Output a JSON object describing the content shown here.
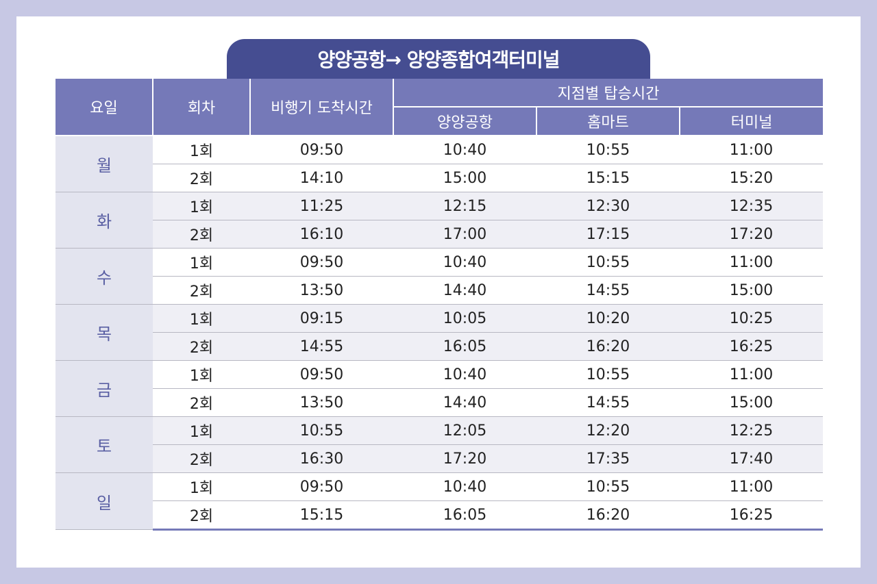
{
  "title": "양양공항→ 양양종합여객터미널",
  "headers": {
    "day": "요일",
    "round": "회차",
    "arrival": "비행기 도착시간",
    "boarding_group": "지점별 탑승시간",
    "stops": [
      "양양공항",
      "홈마트",
      "터미널"
    ]
  },
  "schedule": [
    {
      "day": "월",
      "rows": [
        {
          "round": "1회",
          "arrival": "09:50",
          "airport": "10:40",
          "mart": "10:55",
          "terminal": "11:00"
        },
        {
          "round": "2회",
          "arrival": "14:10",
          "airport": "15:00",
          "mart": "15:15",
          "terminal": "15:20"
        }
      ]
    },
    {
      "day": "화",
      "rows": [
        {
          "round": "1회",
          "arrival": "11:25",
          "airport": "12:15",
          "mart": "12:30",
          "terminal": "12:35"
        },
        {
          "round": "2회",
          "arrival": "16:10",
          "airport": "17:00",
          "mart": "17:15",
          "terminal": "17:20"
        }
      ]
    },
    {
      "day": "수",
      "rows": [
        {
          "round": "1회",
          "arrival": "09:50",
          "airport": "10:40",
          "mart": "10:55",
          "terminal": "11:00"
        },
        {
          "round": "2회",
          "arrival": "13:50",
          "airport": "14:40",
          "mart": "14:55",
          "terminal": "15:00"
        }
      ]
    },
    {
      "day": "목",
      "rows": [
        {
          "round": "1회",
          "arrival": "09:15",
          "airport": "10:05",
          "mart": "10:20",
          "terminal": "10:25"
        },
        {
          "round": "2회",
          "arrival": "14:55",
          "airport": "16:05",
          "mart": "16:20",
          "terminal": "16:25"
        }
      ]
    },
    {
      "day": "금",
      "rows": [
        {
          "round": "1회",
          "arrival": "09:50",
          "airport": "10:40",
          "mart": "10:55",
          "terminal": "11:00"
        },
        {
          "round": "2회",
          "arrival": "13:50",
          "airport": "14:40",
          "mart": "14:55",
          "terminal": "15:00"
        }
      ]
    },
    {
      "day": "토",
      "rows": [
        {
          "round": "1회",
          "arrival": "10:55",
          "airport": "12:05",
          "mart": "12:20",
          "terminal": "12:25"
        },
        {
          "round": "2회",
          "arrival": "16:30",
          "airport": "17:20",
          "mart": "17:35",
          "terminal": "17:40"
        }
      ]
    },
    {
      "day": "일",
      "rows": [
        {
          "round": "1회",
          "arrival": "09:50",
          "airport": "10:40",
          "mart": "10:55",
          "terminal": "11:00"
        },
        {
          "round": "2회",
          "arrival": "15:15",
          "airport": "16:05",
          "mart": "16:20",
          "terminal": "16:25"
        }
      ]
    }
  ]
}
